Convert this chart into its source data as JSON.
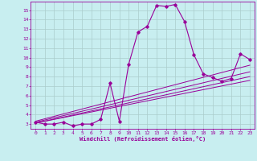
{
  "xlabel": "Windchill (Refroidissement éolien,°C)",
  "bg_color": "#c8eef0",
  "grid_color": "#aacccc",
  "line_color": "#990099",
  "xlim": [
    -0.5,
    23.5
  ],
  "ylim": [
    2.5,
    15.9
  ],
  "xticks": [
    0,
    1,
    2,
    3,
    4,
    5,
    6,
    7,
    8,
    9,
    10,
    11,
    12,
    13,
    14,
    15,
    16,
    17,
    18,
    19,
    20,
    21,
    22,
    23
  ],
  "yticks": [
    3,
    4,
    5,
    6,
    7,
    8,
    9,
    10,
    11,
    12,
    13,
    14,
    15
  ],
  "main_x": [
    0,
    1,
    2,
    3,
    4,
    5,
    6,
    7,
    8,
    9,
    10,
    11,
    12,
    13,
    14,
    15,
    16,
    17,
    18,
    19,
    20,
    21,
    22,
    23
  ],
  "main_y": [
    3.2,
    3.0,
    3.0,
    3.2,
    2.8,
    3.0,
    3.0,
    3.5,
    7.3,
    3.3,
    9.3,
    12.7,
    13.3,
    15.5,
    15.4,
    15.6,
    13.8,
    10.3,
    8.3,
    7.9,
    7.5,
    7.8,
    10.4,
    9.8
  ],
  "line1_x": [
    0,
    23
  ],
  "line1_y": [
    3.1,
    7.6
  ],
  "line2_x": [
    0,
    23
  ],
  "line2_y": [
    3.1,
    8.0
  ],
  "line3_x": [
    0,
    23
  ],
  "line3_y": [
    3.2,
    8.5
  ],
  "line4_x": [
    0,
    23
  ],
  "line4_y": [
    3.3,
    9.2
  ]
}
